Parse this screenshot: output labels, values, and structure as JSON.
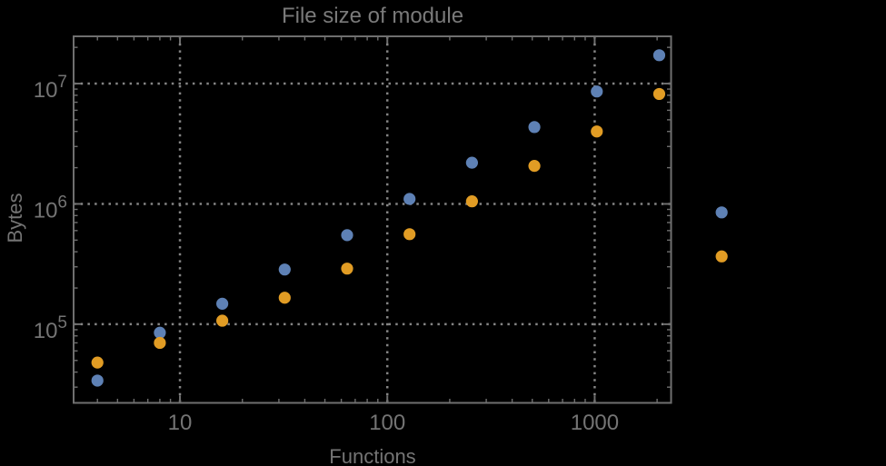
{
  "chart_data": {
    "type": "scatter",
    "title": "File size of module",
    "xlabel": "Functions",
    "ylabel": "Bytes",
    "x_scale": "log",
    "y_scale": "log",
    "xlim": [
      3.07,
      2336
    ],
    "ylim": [
      22200,
      24700000
    ],
    "grid": true,
    "legend": false,
    "series": [
      {
        "name": "blue",
        "color": "#5e81b5",
        "points": [
          [
            4,
            34000
          ],
          [
            8,
            85000
          ],
          [
            16,
            148000
          ],
          [
            32,
            285000
          ],
          [
            64,
            550000
          ],
          [
            128,
            1100000
          ],
          [
            256,
            2200000
          ],
          [
            512,
            4350000
          ],
          [
            1024,
            8600000
          ],
          [
            2048,
            17200000
          ],
          [
            4096,
            850000
          ]
        ]
      },
      {
        "name": "orange",
        "color": "#e19c24",
        "points": [
          [
            4,
            48000
          ],
          [
            8,
            70000
          ],
          [
            16,
            107000
          ],
          [
            32,
            166000
          ],
          [
            64,
            290000
          ],
          [
            128,
            560000
          ],
          [
            256,
            1050000
          ],
          [
            512,
            2070000
          ],
          [
            1024,
            4000000
          ],
          [
            2048,
            8200000
          ],
          [
            4096,
            366000
          ]
        ]
      }
    ],
    "x_ticks": [
      {
        "value": 10,
        "label": "10"
      },
      {
        "value": 100,
        "label": "100"
      },
      {
        "value": 1000,
        "label": "1000"
      }
    ],
    "y_ticks": [
      {
        "value": 100000,
        "base": "10",
        "exp": "5"
      },
      {
        "value": 1000000,
        "base": "10",
        "exp": "6"
      },
      {
        "value": 10000000,
        "base": "10",
        "exp": "7"
      }
    ],
    "x_minor_ticks": [
      4,
      5,
      6,
      7,
      8,
      9,
      20,
      30,
      40,
      50,
      60,
      70,
      80,
      90,
      200,
      300,
      400,
      500,
      600,
      700,
      800,
      900,
      2000
    ],
    "y_minor_ticks": [
      30000,
      40000,
      50000,
      60000,
      70000,
      80000,
      90000,
      200000,
      300000,
      400000,
      500000,
      600000,
      700000,
      800000,
      900000,
      2000000,
      3000000,
      4000000,
      5000000,
      6000000,
      7000000,
      8000000,
      9000000,
      20000000
    ],
    "colors": {
      "background": "#000000",
      "frame": "#6f6f6f",
      "grid": "#848484",
      "text": "#747474",
      "title": "#7a7a7a"
    }
  }
}
